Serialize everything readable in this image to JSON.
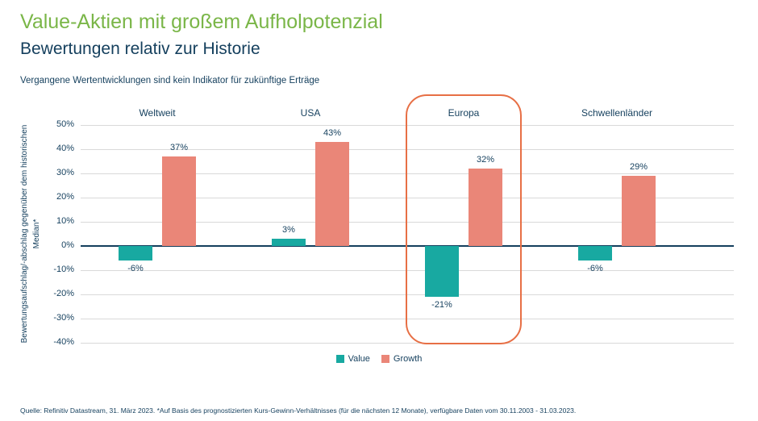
{
  "page": {
    "title": "Value-Aktien mit großem Aufholpotenzial",
    "subtitle": "Bewertungen relativ zur Historie",
    "disclaimer": "Vergangene Wertentwicklungen sind kein Indikator für zukünftige Erträge",
    "source": "Quelle: Refinitiv Datastream, 31. März 2023. *Auf Basis des prognostizierten Kurs-Gewinn-Verhältnisses (für die nächsten 12 Monate), verfügbare Daten vom 30.11.2003 - 31.03.2023."
  },
  "chart_data": {
    "type": "bar",
    "title": "Bewertungen relativ zur Historie",
    "ylabel": "Bewertungsaufschlag/-abschlag gegenüber dem historischen Median*",
    "categories": [
      "Weltweit",
      "USA",
      "Europa",
      "Schwellenländer"
    ],
    "series": [
      {
        "name": "Value",
        "color": "#18a9a1",
        "values": [
          -6,
          3,
          -21,
          -6
        ],
        "labels": [
          "-6%",
          "3%",
          "-21%",
          "-6%"
        ]
      },
      {
        "name": "Growth",
        "color": "#ea8678",
        "values": [
          37,
          43,
          32,
          29
        ],
        "labels": [
          "37%",
          "43%",
          "32%",
          "29%"
        ]
      }
    ],
    "ylim": [
      -40,
      50
    ],
    "ytick_step": 10,
    "ytick_labels": [
      "50%",
      "40%",
      "30%",
      "20%",
      "10%",
      "0%",
      "-10%",
      "-20%",
      "-30%",
      "-40%"
    ],
    "grid": true,
    "highlight_category": "Europa",
    "legend_position": "bottom"
  },
  "colors": {
    "title_green": "#7ab648",
    "navy": "#143f5d",
    "value_teal": "#18a9a1",
    "growth_salmon": "#ea8678",
    "highlight_orange": "#e76f45",
    "gridline": "#d9d9d9"
  }
}
